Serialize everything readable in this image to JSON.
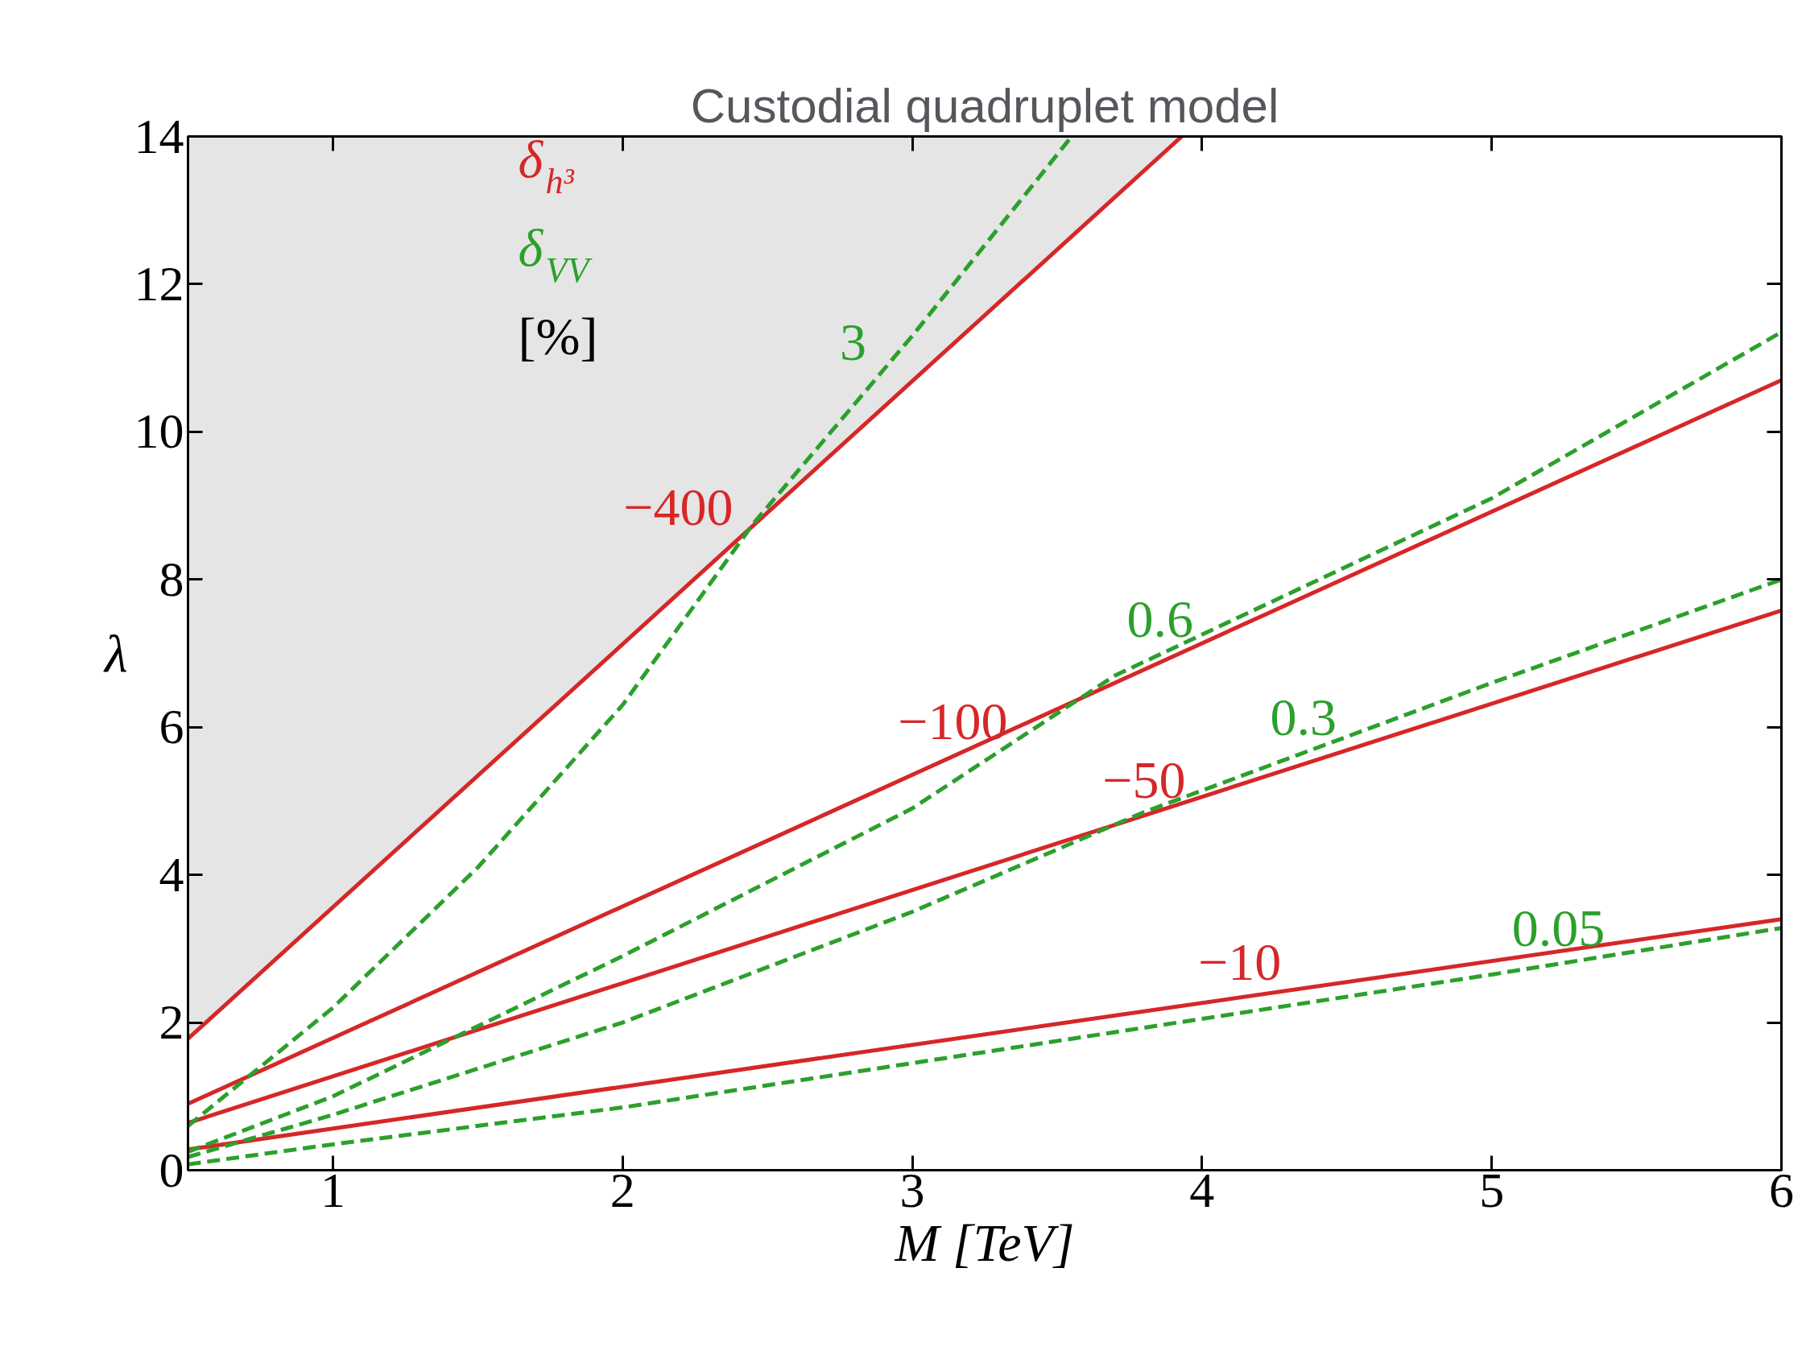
{
  "chart_data": {
    "type": "line",
    "title": "Custodial quadruplet model",
    "xlabel": "M [TeV]",
    "ylabel": "λ",
    "xlim": [
      0.5,
      6
    ],
    "ylim": [
      0,
      14
    ],
    "xticks": [
      1,
      2,
      3,
      4,
      5,
      6
    ],
    "yticks": [
      0,
      2,
      4,
      6,
      8,
      10,
      12,
      14
    ],
    "grid": false,
    "series": [
      {
        "name": "−400",
        "color": "#d62728",
        "line_style": "solid",
        "x": [
          0.5,
          3.93
        ],
        "values": [
          1.78,
          14
        ],
        "lower": [
          1.78,
          14
        ],
        "upper": [
          14,
          14
        ]
      },
      {
        "name": "−100",
        "color": "#d62728",
        "line_style": "solid",
        "x": [
          0.5,
          6
        ],
        "values": [
          0.9,
          10.7
        ]
      },
      {
        "name": "−50",
        "color": "#d62728",
        "line_style": "solid",
        "x": [
          0.5,
          6
        ],
        "values": [
          0.64,
          7.58
        ]
      },
      {
        "name": "−10",
        "color": "#d62728",
        "line_style": "solid",
        "x": [
          0.5,
          6
        ],
        "values": [
          0.28,
          3.4
        ]
      },
      {
        "name": "3",
        "color": "#2ca02c",
        "line_style": "dashed",
        "x": [
          0.5,
          1,
          1.5,
          2,
          2.45,
          3,
          3.55
        ],
        "values": [
          0.6,
          2.2,
          4.1,
          6.3,
          8.75,
          11.3,
          14
        ]
      },
      {
        "name": "0.6",
        "color": "#2ca02c",
        "line_style": "dashed",
        "x": [
          0.5,
          1,
          2,
          3,
          3.7,
          5,
          6
        ],
        "values": [
          0.25,
          1.0,
          2.9,
          4.9,
          6.7,
          9.1,
          11.35
        ]
      },
      {
        "name": "0.3",
        "color": "#2ca02c",
        "line_style": "dashed",
        "x": [
          0.5,
          1,
          2,
          3,
          3.8,
          5,
          6
        ],
        "values": [
          0.18,
          0.75,
          2.0,
          3.5,
          4.85,
          6.6,
          8.0
        ]
      },
      {
        "name": "0.05",
        "color": "#2ca02c",
        "line_style": "dashed",
        "x": [
          0.5,
          1,
          2,
          3,
          4,
          5,
          6
        ],
        "values": [
          0.08,
          0.35,
          0.85,
          1.45,
          2.05,
          2.65,
          3.28
        ]
      }
    ],
    "annotations": [
      "δ$_{h³}$",
      "δ$_{VV}$",
      "[%]"
    ]
  }
}
